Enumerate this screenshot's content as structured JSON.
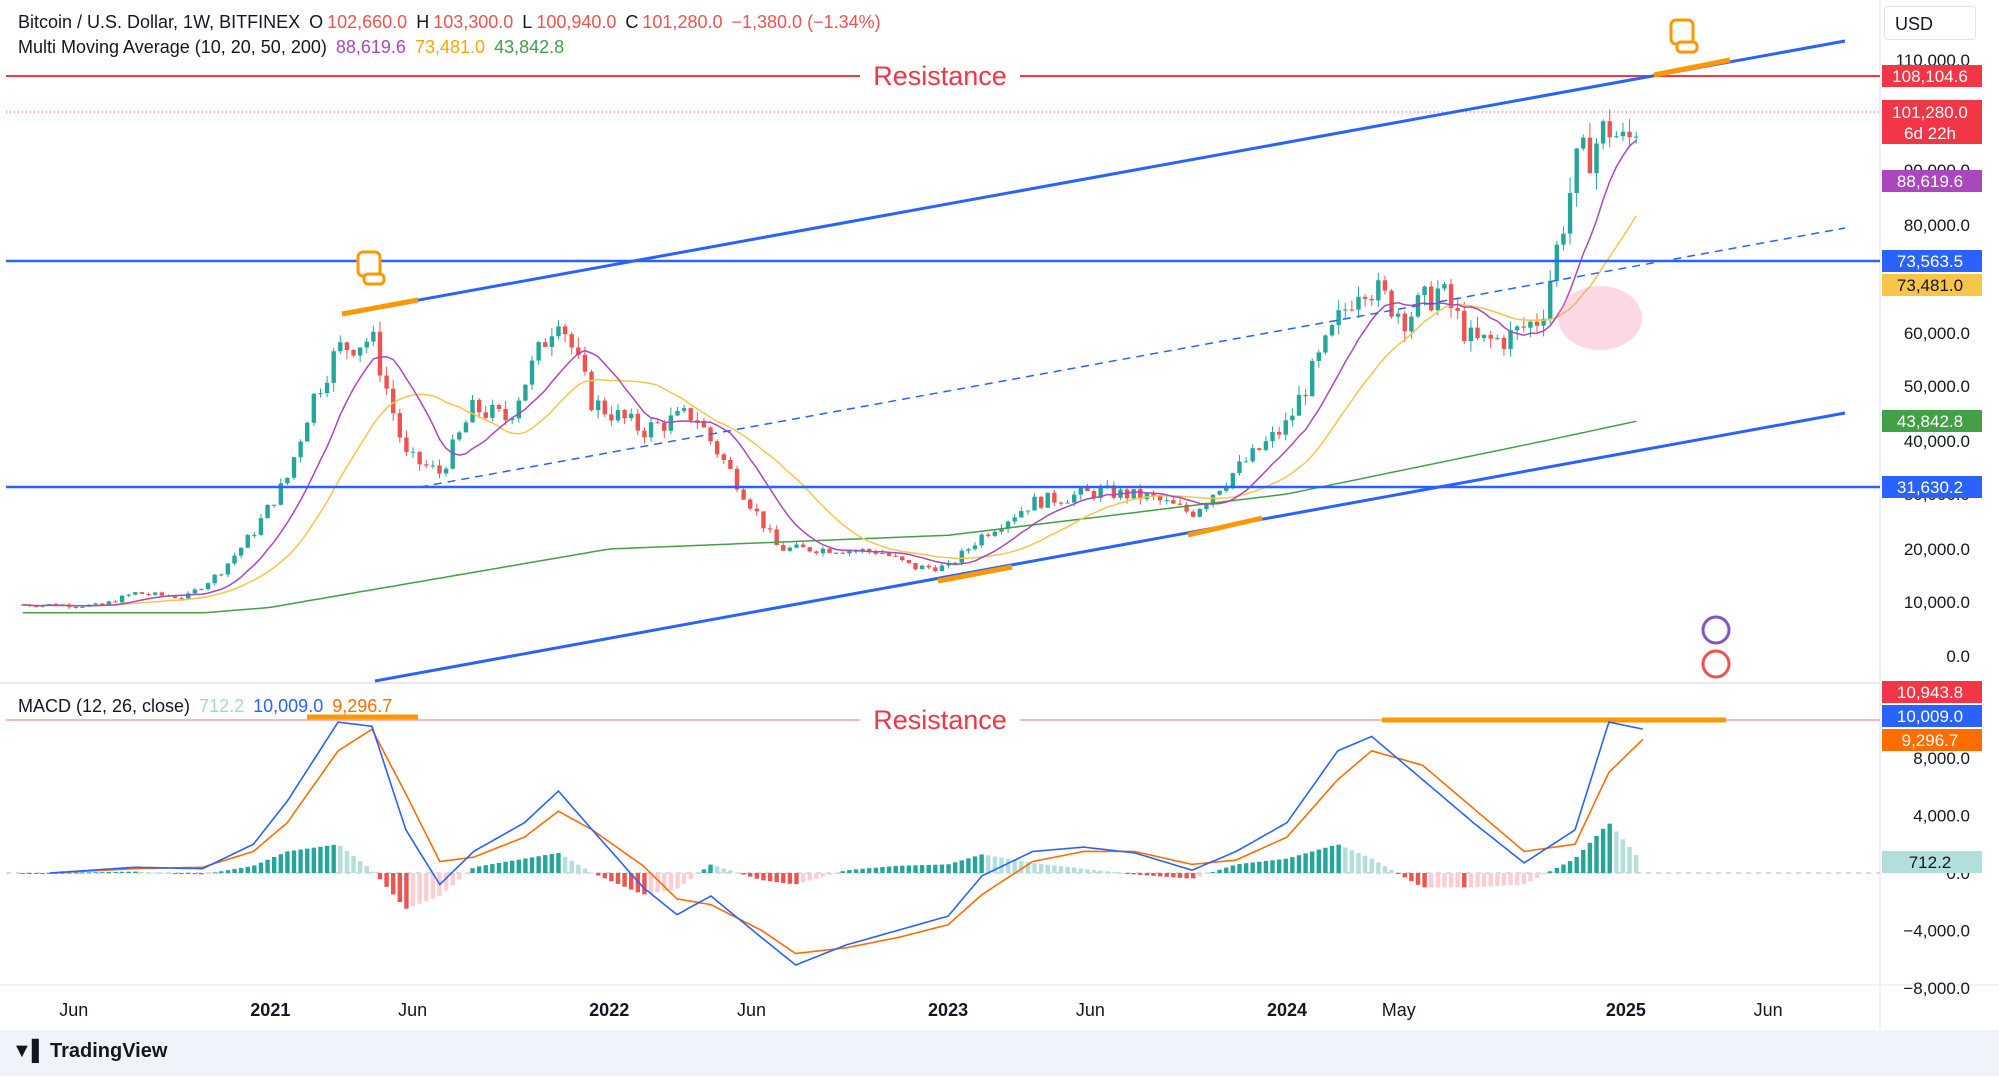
{
  "header": {
    "symbol": "Bitcoin / U.S. Dollar, 1W, BITFINEX",
    "open_label": "O",
    "open": "102,660.0",
    "high_label": "H",
    "high": "103,300.0",
    "low_label": "L",
    "low": "100,940.0",
    "close_label": "C",
    "close": "101,280.0",
    "change": "−1,380.0 (−1.34%)",
    "ma_name": "Multi Moving Average (10, 20, 50, 200)",
    "ma_values": [
      "88,619.6",
      "73,481.0",
      "43,842.8"
    ],
    "macd_name": "MACD (12, 26, close)",
    "macd_values": [
      "712.2",
      "10,009.0",
      "9,296.7"
    ]
  },
  "currency_button": "USD",
  "brand": "TradingView",
  "colors": {
    "up": "#26a69a",
    "down": "#ef5350",
    "ma10": "#ab47bc",
    "ma20": "#f7c54a",
    "ma200": "#43a047",
    "trendline": "#2962ff",
    "resistance": "#f23645",
    "highlight": "#ff9800",
    "macd": "#2962ff",
    "signal": "#ff6d00"
  },
  "chart_data": [
    {
      "type": "candlestick",
      "title": "Bitcoin / U.S. Dollar, 1W, BITFINEX",
      "x_ticks": [
        "Jun",
        "2021",
        "Jun",
        "2022",
        "Jun",
        "2023",
        "Jun",
        "2024",
        "May",
        "2025",
        "Jun"
      ],
      "x_tick_dates": [
        2020.42,
        2021.0,
        2021.42,
        2022.0,
        2022.42,
        2023.0,
        2023.42,
        2024.0,
        2024.33,
        2025.0,
        2025.42
      ],
      "y_ticks": [
        "110,000.0",
        "90,000.0",
        "80,000.0",
        "60,000.0",
        "50,000.0",
        "40,000.0",
        "30,000.0",
        "20,000.0",
        "10,000.0",
        "0.0"
      ],
      "y_tick_values": [
        110000,
        90000,
        80000,
        60000,
        50000,
        40000,
        30000,
        20000,
        10000,
        0
      ],
      "y_scale": "log-like (TradingView auto)",
      "price_series": [
        [
          2020.35,
          9500
        ],
        [
          2020.5,
          9300
        ],
        [
          2020.6,
          11700
        ],
        [
          2020.75,
          10800
        ],
        [
          2020.85,
          15500
        ],
        [
          2020.95,
          23000
        ],
        [
          2021.05,
          33000
        ],
        [
          2021.12,
          47000
        ],
        [
          2021.2,
          57000
        ],
        [
          2021.3,
          59000
        ],
        [
          2021.4,
          37000
        ],
        [
          2021.5,
          34000
        ],
        [
          2021.6,
          46000
        ],
        [
          2021.7,
          44000
        ],
        [
          2021.85,
          64000
        ],
        [
          2021.95,
          47000
        ],
        [
          2022.1,
          42000
        ],
        [
          2022.25,
          45000
        ],
        [
          2022.4,
          30000
        ],
        [
          2022.5,
          20000
        ],
        [
          2022.65,
          20000
        ],
        [
          2022.8,
          19500
        ],
        [
          2022.9,
          16500
        ],
        [
          2023.0,
          16600
        ],
        [
          2023.1,
          22500
        ],
        [
          2023.25,
          28500
        ],
        [
          2023.45,
          30500
        ],
        [
          2023.6,
          29300
        ],
        [
          2023.72,
          26500
        ],
        [
          2023.85,
          34500
        ],
        [
          2024.0,
          43000
        ],
        [
          2024.15,
          62000
        ],
        [
          2024.22,
          70000
        ],
        [
          2024.35,
          63000
        ],
        [
          2024.45,
          68000
        ],
        [
          2024.55,
          58000
        ],
        [
          2024.65,
          59000
        ],
        [
          2024.75,
          63000
        ],
        [
          2024.85,
          90000
        ],
        [
          2024.95,
          98000
        ],
        [
          2025.0,
          94000
        ],
        [
          2025.05,
          101280
        ]
      ],
      "last_candle": {
        "open": 102660,
        "high": 103300,
        "low": 100940,
        "close": 101280
      },
      "moving_averages": [
        {
          "name": "MA 10",
          "last": 88619.6
        },
        {
          "name": "MA 20",
          "last": 73481.0
        },
        {
          "name": "MA 200",
          "last": 43842.8
        }
      ],
      "price_labels": [
        {
          "text": "108,104.6",
          "kind": "resistance"
        },
        {
          "text": "101,280.0",
          "kind": "last"
        },
        {
          "text": "6d 22h",
          "kind": "countdown"
        },
        {
          "text": "88,619.6",
          "kind": "ma10"
        },
        {
          "text": "73,563.5",
          "kind": "hline"
        },
        {
          "text": "73,481.0",
          "kind": "ma20"
        },
        {
          "text": "43,842.8",
          "kind": "ma200"
        },
        {
          "text": "31,630.2",
          "kind": "hline"
        }
      ],
      "annotations": [
        {
          "text": "Resistance",
          "type": "horizontal-line",
          "value": 108104.6
        },
        {
          "type": "horizontal-line",
          "value": 73563.5
        },
        {
          "type": "horizontal-line",
          "value": 31630.2
        }
      ]
    },
    {
      "type": "macd",
      "title": "MACD (12, 26, close)",
      "y_ticks": [
        "8,000.0",
        "4,000.0",
        "0.0",
        "−4,000.0",
        "−8,000.0"
      ],
      "y_tick_values": [
        8000,
        4000,
        0,
        -4000,
        -8000
      ],
      "series": [
        {
          "name": "MACD",
          "last": 10009.0
        },
        {
          "name": "Signal",
          "last": 9296.7
        },
        {
          "name": "Histogram",
          "last": 712.2
        }
      ],
      "price_labels": [
        {
          "text": "10,943.8",
          "kind": "resistance"
        },
        {
          "text": "10,009.0",
          "kind": "macd"
        },
        {
          "text": "9,296.7",
          "kind": "signal"
        },
        {
          "text": "712.2",
          "kind": "hist"
        }
      ],
      "macd_points": [
        [
          2020.35,
          0
        ],
        [
          2020.6,
          400
        ],
        [
          2020.8,
          300
        ],
        [
          2020.95,
          2000
        ],
        [
          2021.05,
          5000
        ],
        [
          2021.2,
          10500
        ],
        [
          2021.3,
          10200
        ],
        [
          2021.4,
          3000
        ],
        [
          2021.5,
          -800
        ],
        [
          2021.6,
          1500
        ],
        [
          2021.75,
          3500
        ],
        [
          2021.85,
          5700
        ],
        [
          2021.95,
          3000
        ],
        [
          2022.1,
          -1000
        ],
        [
          2022.2,
          -2900
        ],
        [
          2022.3,
          -1600
        ],
        [
          2022.45,
          -4500
        ],
        [
          2022.55,
          -6400
        ],
        [
          2022.7,
          -5000
        ],
        [
          2022.85,
          -4000
        ],
        [
          2023.0,
          -3000
        ],
        [
          2023.1,
          -200
        ],
        [
          2023.25,
          1500
        ],
        [
          2023.4,
          1800
        ],
        [
          2023.55,
          1400
        ],
        [
          2023.72,
          200
        ],
        [
          2023.85,
          1500
        ],
        [
          2024.0,
          3500
        ],
        [
          2024.15,
          8500
        ],
        [
          2024.25,
          9500
        ],
        [
          2024.4,
          6500
        ],
        [
          2024.55,
          3500
        ],
        [
          2024.7,
          700
        ],
        [
          2024.85,
          3000
        ],
        [
          2024.95,
          10500
        ],
        [
          2025.05,
          10009
        ]
      ],
      "signal_points": [
        [
          2020.35,
          0
        ],
        [
          2020.6,
          300
        ],
        [
          2020.8,
          400
        ],
        [
          2020.95,
          1500
        ],
        [
          2021.05,
          3500
        ],
        [
          2021.2,
          8500
        ],
        [
          2021.3,
          10000
        ],
        [
          2021.4,
          5500
        ],
        [
          2021.5,
          800
        ],
        [
          2021.6,
          1100
        ],
        [
          2021.75,
          2500
        ],
        [
          2021.85,
          4300
        ],
        [
          2021.95,
          3000
        ],
        [
          2022.1,
          500
        ],
        [
          2022.2,
          -1800
        ],
        [
          2022.3,
          -2200
        ],
        [
          2022.45,
          -4000
        ],
        [
          2022.55,
          -5600
        ],
        [
          2022.7,
          -5200
        ],
        [
          2022.85,
          -4500
        ],
        [
          2023.0,
          -3600
        ],
        [
          2023.1,
          -1500
        ],
        [
          2023.25,
          800
        ],
        [
          2023.4,
          1500
        ],
        [
          2023.55,
          1500
        ],
        [
          2023.72,
          600
        ],
        [
          2023.85,
          900
        ],
        [
          2024.0,
          2500
        ],
        [
          2024.15,
          6500
        ],
        [
          2024.25,
          8500
        ],
        [
          2024.4,
          7500
        ],
        [
          2024.55,
          4500
        ],
        [
          2024.7,
          1500
        ],
        [
          2024.85,
          2000
        ],
        [
          2024.95,
          7000
        ],
        [
          2025.05,
          9296.7
        ]
      ],
      "annotations": [
        {
          "text": "Resistance",
          "type": "horizontal-line",
          "value": 10943.8
        }
      ]
    }
  ]
}
